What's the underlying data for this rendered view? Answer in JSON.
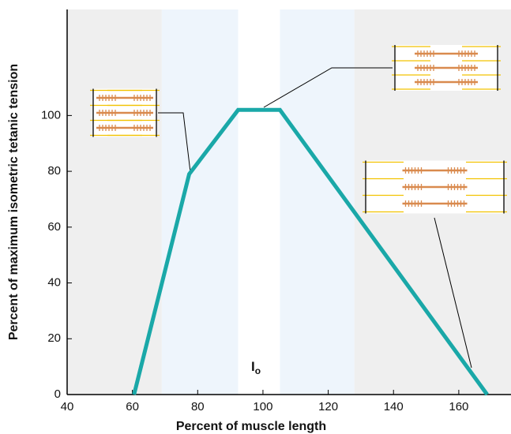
{
  "chart_data": {
    "type": "line",
    "x_label": "Percent of muscle length",
    "y_label": "Percent of maximum isometric tetanic tension",
    "annotation": {
      "text": "I",
      "subscript": "o"
    },
    "x": [
      60.5,
      77.4,
      92.4,
      105.2,
      168.7
    ],
    "values": [
      0,
      79,
      102,
      102,
      0
    ],
    "color": "#1aa8a8",
    "xlim": [
      40,
      176
    ],
    "ylim": [
      0,
      138
    ],
    "xticks": [
      40,
      60,
      80,
      100,
      120,
      140,
      160
    ],
    "yticks": [
      0,
      20,
      40,
      60,
      80,
      100
    ],
    "bands": [
      {
        "from": 40,
        "to": 69,
        "color": "#efefef"
      },
      {
        "from": 69,
        "to": 92.4,
        "color": "#eef5fc"
      },
      {
        "from": 105.2,
        "to": 128,
        "color": "#eef5fc"
      },
      {
        "from": 128,
        "to": 176,
        "color": "#efefef"
      }
    ]
  }
}
